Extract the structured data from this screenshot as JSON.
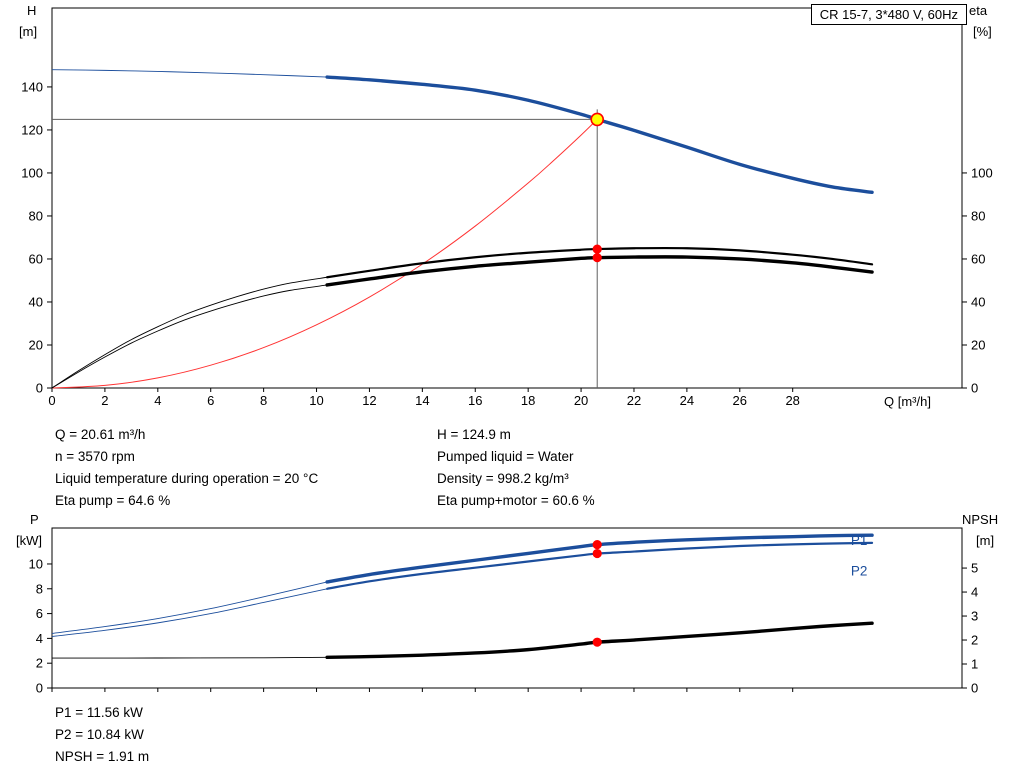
{
  "title_box": "CR 15-7, 3*480 V, 60Hz",
  "colors": {
    "primary_blue": "#1c4e9c",
    "curve_black": "#000000",
    "system_red": "#ff3333",
    "dot_red": "#ff0000",
    "duty_yellow": "#ffff00",
    "crosshair": "#5f5f5f"
  },
  "info_top": {
    "left": [
      "Q = 20.61 m³/h",
      "n = 3570 rpm",
      "Liquid temperature during operation = 20 °C",
      "Eta pump = 64.6 %"
    ],
    "right": [
      "H = 124.9 m",
      "Pumped liquid = Water",
      "Density = 998.2 kg/m³",
      "Eta pump+motor = 60.6 %"
    ]
  },
  "info_bottom": {
    "lines": [
      "P1 = 11.56 kW",
      "P2 = 10.84 kW",
      "NPSH = 1.91 m"
    ]
  },
  "chart_data": [
    {
      "id": "qh-chart",
      "type": "line",
      "title": "CR 15-7, 3*480 V, 60Hz",
      "x_axis": {
        "label": "Q [m³/h]",
        "min": 0,
        "max": 34.4,
        "ticks": [
          0,
          2,
          4,
          6,
          8,
          10,
          12,
          14,
          16,
          18,
          20,
          22,
          24,
          26,
          28
        ]
      },
      "y_left": {
        "name": "H",
        "unit": "[m]",
        "min": 0,
        "max": 176.7,
        "ticks": [
          0,
          20,
          40,
          60,
          80,
          100,
          120,
          140
        ]
      },
      "y_right": {
        "name": "eta",
        "unit": "[%]",
        "min": 0,
        "max": 176.7,
        "ticks": [
          0,
          20,
          40,
          60,
          80,
          100
        ]
      },
      "series": [
        {
          "name": "system-curve",
          "axis": "left",
          "color_key": "system_red",
          "thin_width": 1,
          "thick_width": 1,
          "split": 99,
          "points": [
            [
              0,
              0
            ],
            [
              2,
              1.2
            ],
            [
              4,
              4.7
            ],
            [
              6,
              10.6
            ],
            [
              8,
              18.8
            ],
            [
              10,
              29.4
            ],
            [
              12,
              42.3
            ],
            [
              14,
              57.6
            ],
            [
              16,
              75.3
            ],
            [
              18,
              95.3
            ],
            [
              19,
              106.2
            ],
            [
              20,
              117.6
            ],
            [
              20.61,
              124.9
            ]
          ]
        },
        {
          "name": "eta-pump-curve",
          "axis": "right",
          "color_key": "curve_black",
          "thin_width": 0.9,
          "thick_width": 2.2,
          "split": 10.4,
          "points": [
            [
              0,
              0
            ],
            [
              1,
              8
            ],
            [
              2,
              15.5
            ],
            [
              3,
              22.5
            ],
            [
              4,
              28.5
            ],
            [
              5,
              34
            ],
            [
              6,
              38.5
            ],
            [
              7,
              42.5
            ],
            [
              8,
              46
            ],
            [
              9,
              48.8
            ],
            [
              10.4,
              51.5
            ],
            [
              12,
              54.5
            ],
            [
              14,
              58
            ],
            [
              16,
              60.8
            ],
            [
              18,
              62.9
            ],
            [
              20,
              64.3
            ],
            [
              20.61,
              64.6
            ],
            [
              22,
              65
            ],
            [
              24,
              65
            ],
            [
              26,
              64
            ],
            [
              28,
              62
            ],
            [
              29.5,
              60
            ],
            [
              31,
              57.5
            ]
          ]
        },
        {
          "name": "eta-pump-motor-curve",
          "axis": "right",
          "color_key": "curve_black",
          "thin_width": 0.9,
          "thick_width": 3.4,
          "split": 10.4,
          "points": [
            [
              0,
              0
            ],
            [
              1,
              7.4
            ],
            [
              2,
              14.4
            ],
            [
              3,
              20.9
            ],
            [
              4,
              26.5
            ],
            [
              5,
              31.6
            ],
            [
              6,
              35.8
            ],
            [
              7,
              39.5
            ],
            [
              8,
              42.8
            ],
            [
              9,
              45.4
            ],
            [
              10.4,
              47.9
            ],
            [
              12,
              50.7
            ],
            [
              14,
              54
            ],
            [
              16,
              56.6
            ],
            [
              18,
              58.5
            ],
            [
              20,
              60.3
            ],
            [
              20.61,
              60.6
            ],
            [
              22,
              60.9
            ],
            [
              24,
              60.9
            ],
            [
              26,
              60
            ],
            [
              28,
              58.2
            ],
            [
              29.5,
              56.2
            ],
            [
              31,
              53.9
            ]
          ]
        },
        {
          "name": "head-curve",
          "axis": "left",
          "color_key": "primary_blue",
          "thin_width": 0.9,
          "thick_width": 3.4,
          "split": 10.4,
          "points": [
            [
              0,
              148
            ],
            [
              2,
              147.7
            ],
            [
              4,
              147.2
            ],
            [
              6,
              146.5
            ],
            [
              8,
              145.7
            ],
            [
              10.4,
              144.6
            ],
            [
              12,
              143.3
            ],
            [
              14,
              141.2
            ],
            [
              16,
              138.5
            ],
            [
              18,
              133.8
            ],
            [
              20,
              127.3
            ],
            [
              20.61,
              124.9
            ],
            [
              22,
              119.8
            ],
            [
              24,
              112
            ],
            [
              26,
              104
            ],
            [
              28,
              97.5
            ],
            [
              29.5,
              93.5
            ],
            [
              31,
              91
            ]
          ]
        }
      ],
      "crosshair": {
        "q": 20.61,
        "value": 124.9
      },
      "duty_point": {
        "q": 20.61,
        "value": 124.9
      },
      "dots": [
        {
          "q": 20.61,
          "value": 64.6,
          "axis": "right"
        },
        {
          "q": 20.61,
          "value": 60.6,
          "axis": "right"
        }
      ]
    },
    {
      "id": "power-npsh-chart",
      "type": "line",
      "x_axis": {
        "label": "",
        "min": 0,
        "max": 34.4,
        "ticks": [
          0,
          2,
          4,
          6,
          8,
          10,
          12,
          14,
          16,
          18,
          20,
          22,
          24,
          26,
          28
        ]
      },
      "y_left": {
        "name": "P",
        "unit": "[kW]",
        "min": 0,
        "max": 12.9,
        "ticks": [
          0,
          2,
          4,
          6,
          8,
          10
        ]
      },
      "y_right": {
        "name": "NPSH",
        "unit": "[m]",
        "min": 0,
        "max": 6.67,
        "ticks": [
          0,
          1,
          2,
          3,
          4,
          5
        ]
      },
      "series": [
        {
          "name": "npsh-curve",
          "axis": "right",
          "color_key": "curve_black",
          "thin_width": 0.9,
          "thick_width": 3.4,
          "split": 10.4,
          "points": [
            [
              0,
              1.25
            ],
            [
              4,
              1.25
            ],
            [
              8,
              1.26
            ],
            [
              10.4,
              1.28
            ],
            [
              12,
              1.31
            ],
            [
              14,
              1.37
            ],
            [
              16,
              1.46
            ],
            [
              18,
              1.6
            ],
            [
              20,
              1.83
            ],
            [
              20.61,
              1.91
            ],
            [
              22,
              2.0
            ],
            [
              24,
              2.15
            ],
            [
              26,
              2.3
            ],
            [
              28,
              2.48
            ],
            [
              29.5,
              2.6
            ],
            [
              31,
              2.7
            ]
          ]
        },
        {
          "name": "p2-curve",
          "axis": "left",
          "color_key": "primary_blue",
          "thin_width": 0.9,
          "thick_width": 2.2,
          "split": 10.4,
          "points": [
            [
              0,
              4.15
            ],
            [
              2,
              4.65
            ],
            [
              4,
              5.25
            ],
            [
              6,
              6.0
            ],
            [
              8,
              6.9
            ],
            [
              10.4,
              8.0
            ],
            [
              12,
              8.6
            ],
            [
              14,
              9.2
            ],
            [
              16,
              9.7
            ],
            [
              18,
              10.2
            ],
            [
              20,
              10.7
            ],
            [
              20.61,
              10.84
            ],
            [
              22,
              11.0
            ],
            [
              24,
              11.25
            ],
            [
              26,
              11.45
            ],
            [
              28,
              11.58
            ],
            [
              29.5,
              11.65
            ],
            [
              31,
              11.7
            ]
          ]
        },
        {
          "name": "p1-curve",
          "axis": "left",
          "color_key": "primary_blue",
          "thin_width": 0.9,
          "thick_width": 3.4,
          "split": 10.4,
          "points": [
            [
              0,
              4.4
            ],
            [
              2,
              4.95
            ],
            [
              4,
              5.6
            ],
            [
              6,
              6.4
            ],
            [
              8,
              7.35
            ],
            [
              10.4,
              8.55
            ],
            [
              12,
              9.15
            ],
            [
              14,
              9.75
            ],
            [
              16,
              10.3
            ],
            [
              18,
              10.85
            ],
            [
              20,
              11.4
            ],
            [
              20.61,
              11.56
            ],
            [
              22,
              11.75
            ],
            [
              24,
              11.95
            ],
            [
              26,
              12.1
            ],
            [
              28,
              12.2
            ],
            [
              29.5,
              12.28
            ],
            [
              31,
              12.32
            ]
          ]
        }
      ],
      "curve_labels": [
        {
          "text": "P1",
          "q": 30.2,
          "value": 11.85
        },
        {
          "text": "P2",
          "q": 30.2,
          "value": 9.4
        }
      ],
      "dots": [
        {
          "q": 20.61,
          "value": 11.56,
          "axis": "left"
        },
        {
          "q": 20.61,
          "value": 10.84,
          "axis": "left"
        },
        {
          "q": 20.61,
          "value": 1.91,
          "axis": "right"
        }
      ]
    }
  ]
}
